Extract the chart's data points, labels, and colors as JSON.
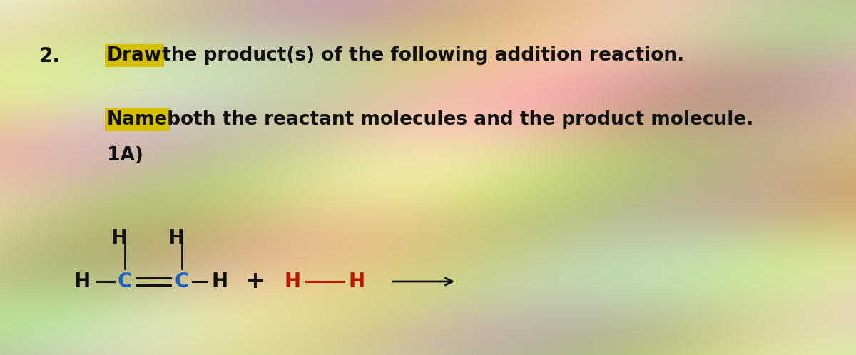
{
  "bg_base_color": [
    0.82,
    0.79,
    0.62
  ],
  "title_number": "2.",
  "line1_underlined": "Draw",
  "line1_plain": " the product(s) of the following addition reaction.",
  "line2_underlined": "Name",
  "line2_plain": " both the reactant molecules and the product molecule.",
  "line3": "1A)",
  "text_color": "#111111",
  "highlight_color": "#d4c000",
  "font_size_main": 19,
  "font_size_chem": 20,
  "font_size_number": 20,
  "arrow_color": "#111111",
  "c_color": "#1a5fc8",
  "h2_color": "#bb1800",
  "fig_width": 12.0,
  "fig_height": 4.98,
  "dpi": 100
}
